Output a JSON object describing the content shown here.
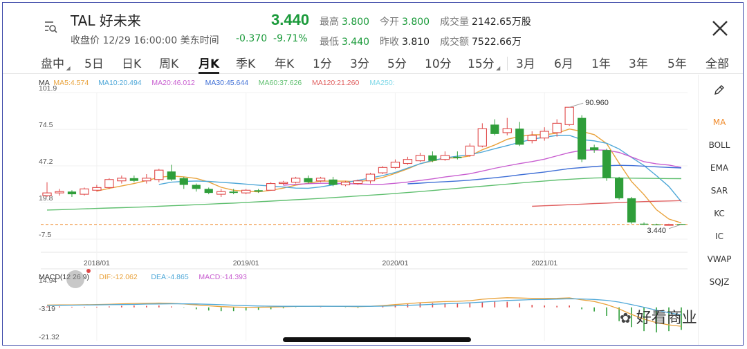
{
  "header": {
    "symbol": "TAL 好未来",
    "subtitle": "收盘价 12/29 16:00:00 美东时间",
    "price": "3.440",
    "change": "-0.370",
    "change_pct": "-9.71%",
    "stats": [
      {
        "label": "最高",
        "value": "3.800",
        "style": "v"
      },
      {
        "label": "今开",
        "value": "3.800",
        "style": "v"
      },
      {
        "label": "成交量",
        "value": "2142.65万股",
        "style": "d"
      },
      {
        "label": "最低",
        "value": "3.440",
        "style": "v"
      },
      {
        "label": "昨收",
        "value": "3.810",
        "style": "d"
      },
      {
        "label": "成交额",
        "value": "7522.66万",
        "style": "d"
      }
    ]
  },
  "tabs": [
    "盘中",
    "5日",
    "日K",
    "周K",
    "月K",
    "季K",
    "年K",
    "1分",
    "3分",
    "5分",
    "10分",
    "15分",
    "3月",
    "6月",
    "1年",
    "3年",
    "5年",
    "全部"
  ],
  "active_tab": "月K",
  "side_menu": [
    "MA",
    "BOLL",
    "EMA",
    "SAR",
    "KC",
    "IC",
    "VWAP",
    "SQJZ"
  ],
  "active_indicator": "MA",
  "watermark": "好看商业",
  "colors": {
    "up": "#e04848",
    "down": "#2f9e3a",
    "accent": "#f08c2e"
  },
  "chart_data": {
    "type": "candlestick",
    "ma_legend": [
      {
        "label": "MA",
        "color": "#333333"
      },
      {
        "label": "MA5:4.574",
        "color": "#e9a23b"
      },
      {
        "label": "MA10:20.494",
        "color": "#4fa8d8"
      },
      {
        "label": "MA20:46.012",
        "color": "#c85ed0"
      },
      {
        "label": "MA30:45.644",
        "color": "#3f6fd6"
      },
      {
        "label": "MA60:37.626",
        "color": "#5fbf6f"
      },
      {
        "label": "MA120:21.260",
        "color": "#e06060"
      },
      {
        "label": "MA250:",
        "color": "#7fd8e8"
      }
    ],
    "y_ticks": [
      "101.9",
      "74.5",
      "47.2",
      "19.8",
      "-7.5"
    ],
    "y_tick_values": [
      101.9,
      74.5,
      47.2,
      19.8,
      -7.5
    ],
    "ylim": [
      -7.5,
      101.9
    ],
    "x_ticks": [
      {
        "label": "2018/01",
        "index": 4
      },
      {
        "label": "2019/01",
        "index": 16
      },
      {
        "label": "2020/01",
        "index": 28
      },
      {
        "label": "2021/01",
        "index": 40
      }
    ],
    "candles": [
      [
        25,
        27,
        35,
        24
      ],
      [
        27,
        28,
        30,
        25
      ],
      [
        28,
        26,
        29,
        24
      ],
      [
        26,
        30,
        31,
        25
      ],
      [
        29,
        31,
        33,
        28
      ],
      [
        31,
        37,
        38,
        30
      ],
      [
        36,
        38,
        40,
        34
      ],
      [
        38,
        36,
        40,
        35
      ],
      [
        36,
        38,
        41,
        34
      ],
      [
        37,
        44,
        45,
        35
      ],
      [
        43,
        37,
        48,
        36
      ],
      [
        38,
        33,
        39,
        30
      ],
      [
        33,
        30,
        34,
        28
      ],
      [
        30,
        27,
        31,
        26
      ],
      [
        26,
        28,
        30,
        24
      ],
      [
        28,
        27,
        30,
        26
      ],
      [
        27,
        29,
        30,
        26
      ],
      [
        29,
        28,
        30,
        27
      ],
      [
        29,
        34,
        35,
        29
      ],
      [
        34,
        35,
        36,
        33
      ],
      [
        35,
        38,
        39,
        34
      ],
      [
        38,
        35,
        40,
        34
      ],
      [
        36,
        38,
        39,
        35
      ],
      [
        37,
        33,
        39,
        32
      ],
      [
        33,
        35,
        36,
        32
      ],
      [
        34,
        36,
        37,
        33
      ],
      [
        36,
        41,
        42,
        34
      ],
      [
        42,
        46,
        47,
        41
      ],
      [
        46,
        50,
        52,
        45
      ],
      [
        49,
        52,
        54,
        48
      ],
      [
        51,
        55,
        57,
        50
      ],
      [
        55,
        51,
        58,
        50
      ],
      [
        52,
        55,
        58,
        51
      ],
      [
        54,
        53,
        58,
        52
      ],
      [
        55,
        62,
        64,
        54
      ],
      [
        62,
        75,
        79,
        61
      ],
      [
        78,
        71,
        82,
        70
      ],
      [
        72,
        75,
        83,
        70
      ],
      [
        75,
        63,
        80,
        62
      ],
      [
        66,
        70,
        73,
        64
      ],
      [
        68,
        73,
        76,
        66
      ],
      [
        72,
        79,
        82,
        69
      ],
      [
        78,
        90.96,
        91,
        77
      ],
      [
        83,
        52,
        85,
        50
      ],
      [
        61,
        59,
        63,
        57
      ],
      [
        59,
        38,
        60,
        36
      ],
      [
        38,
        23,
        39,
        22
      ],
      [
        23,
        5,
        24,
        4
      ],
      [
        4,
        3.3,
        5,
        3
      ],
      [
        3.5,
        3.1,
        4,
        3
      ],
      [
        3.2,
        3.4,
        4,
        3
      ],
      [
        3.8,
        3.44,
        3.9,
        3.4
      ]
    ],
    "ma_lines": [
      {
        "name": "MA5",
        "color": "#e9a23b",
        "values": [
          null,
          null,
          null,
          null,
          28.4,
          30.4,
          32.2,
          34.0,
          36.2,
          38.6,
          39.6,
          39.0,
          37.8,
          35.2,
          31.2,
          29.0,
          28.2,
          27.8,
          29.0,
          30.6,
          32.8,
          34.2,
          35.8,
          35.8,
          35.8,
          35.4,
          36.6,
          38.6,
          41.6,
          45.0,
          48.8,
          50.8,
          53.0,
          53.2,
          54.6,
          59.2,
          62.8,
          67.0,
          69.2,
          70.4,
          70.4,
          71.6,
          74.7,
          72.9,
          70.5,
          63.8,
          49.2,
          35.5,
          25.7,
          14.5,
          7.5,
          4.57
        ]
      },
      {
        "name": "MA10",
        "color": "#4fa8d8",
        "values": [
          null,
          null,
          null,
          null,
          null,
          null,
          null,
          null,
          null,
          33.3,
          35.0,
          35.6,
          35.9,
          35.6,
          34.9,
          34.3,
          33.6,
          32.8,
          32.1,
          31.4,
          30.6,
          30.5,
          31.5,
          33.0,
          34.7,
          36.4,
          38.1,
          40.0,
          42.3,
          45.6,
          48.8,
          51.3,
          53.1,
          54.5,
          55.5,
          57.5,
          60.0,
          62.3,
          64.7,
          67.1,
          68.6,
          69.9,
          70.0,
          66.8,
          65.9,
          64.1,
          59.8,
          53.5,
          47.4,
          39.9,
          31.8,
          20.49
        ]
      },
      {
        "name": "MA20",
        "color": "#c85ed0",
        "values": [
          null,
          null,
          null,
          null,
          null,
          null,
          null,
          null,
          null,
          null,
          null,
          null,
          null,
          null,
          null,
          null,
          null,
          null,
          null,
          32.7,
          33.4,
          33.9,
          34.2,
          34.2,
          34.0,
          33.7,
          33.4,
          33.4,
          34.2,
          35.1,
          36.3,
          37.5,
          38.9,
          40.1,
          41.3,
          43.3,
          45.4,
          47.2,
          48.9,
          50.4,
          52.2,
          54.7,
          57.1,
          58.8,
          59.1,
          58.9,
          57.2,
          53.8,
          50.3,
          48.7,
          47.8,
          46.01
        ]
      },
      {
        "name": "MA30",
        "color": "#3f6fd6",
        "values": [
          null,
          null,
          null,
          null,
          null,
          null,
          null,
          null,
          null,
          null,
          null,
          null,
          null,
          null,
          null,
          null,
          null,
          null,
          null,
          null,
          null,
          null,
          null,
          null,
          null,
          null,
          null,
          null,
          null,
          33.8,
          34.3,
          34.9,
          35.4,
          35.9,
          36.5,
          37.4,
          38.3,
          39.3,
          40.5,
          41.5,
          42.6,
          43.9,
          45.2,
          45.9,
          46.7,
          47.3,
          47.6,
          47.4,
          47.0,
          46.5,
          46.0,
          45.64
        ]
      },
      {
        "name": "MA60",
        "color": "#5fbf6f",
        "values": [
          14.2,
          14.5,
          14.8,
          15.1,
          15.4,
          15.7,
          16.0,
          16.3,
          16.6,
          17.0,
          17.4,
          17.8,
          18.2,
          18.6,
          19.0,
          19.4,
          19.9,
          20.4,
          20.9,
          21.4,
          21.9,
          22.4,
          22.9,
          23.5,
          24.1,
          24.7,
          25.3,
          25.9,
          26.6,
          27.3,
          28.0,
          28.8,
          29.6,
          30.4,
          31.2,
          32.0,
          32.8,
          33.6,
          34.4,
          35.2,
          35.9,
          36.6,
          37.2,
          37.7,
          38.1,
          38.3,
          38.2,
          38.0,
          37.9,
          37.8,
          37.7,
          37.63
        ]
      },
      {
        "name": "MA120",
        "color": "#e06060",
        "values": [
          null,
          null,
          null,
          null,
          null,
          null,
          null,
          null,
          null,
          null,
          null,
          null,
          null,
          null,
          null,
          null,
          null,
          null,
          null,
          null,
          null,
          null,
          null,
          null,
          null,
          null,
          null,
          null,
          null,
          null,
          null,
          null,
          null,
          null,
          null,
          null,
          null,
          null,
          null,
          17.0,
          17.4,
          17.8,
          18.2,
          18.6,
          19.0,
          19.4,
          19.8,
          20.2,
          20.5,
          20.8,
          21.0,
          21.26
        ]
      }
    ],
    "annotations": [
      {
        "label": "90.960",
        "index": 42,
        "value": 90.96
      },
      {
        "label": "3.440",
        "index": 51,
        "value": 3.44
      }
    ],
    "last_price_line": 3.44,
    "macd": {
      "legend": [
        {
          "label": "MACD(12 26 9)",
          "color": "#333333"
        },
        {
          "label": "DIF:-12.062",
          "color": "#e9a23b"
        },
        {
          "label": "DEA:-4.865",
          "color": "#4fa8d8"
        },
        {
          "label": "MACD:-14.393",
          "color": "#c85ed0"
        }
      ],
      "y_ticks": [
        "14.94",
        "-3.19",
        "-21.32"
      ],
      "y_tick_values": [
        14.94,
        -3.19,
        -21.32
      ],
      "ylim": [
        -21.32,
        14.94
      ],
      "dif": [
        1.5,
        1.6,
        1.6,
        1.7,
        1.8,
        2.0,
        2.3,
        2.5,
        2.6,
        2.8,
        2.6,
        2.2,
        1.6,
        1.0,
        0.5,
        0.2,
        0.1,
        0.1,
        0.2,
        0.4,
        0.6,
        0.7,
        0.8,
        0.7,
        0.6,
        0.5,
        0.7,
        1.2,
        1.8,
        2.4,
        3.0,
        3.4,
        3.7,
        3.9,
        4.3,
        5.2,
        5.8,
        6.2,
        6.0,
        5.8,
        5.7,
        5.8,
        6.1,
        4.8,
        3.8,
        1.8,
        -1.0,
        -4.5,
        -7.5,
        -9.8,
        -11.2,
        -12.06
      ],
      "dea": [
        1.2,
        1.3,
        1.4,
        1.5,
        1.6,
        1.7,
        1.8,
        1.9,
        2.1,
        2.2,
        2.3,
        2.3,
        2.2,
        2.0,
        1.7,
        1.4,
        1.1,
        0.9,
        0.8,
        0.7,
        0.7,
        0.7,
        0.7,
        0.7,
        0.7,
        0.7,
        0.7,
        0.8,
        1.0,
        1.3,
        1.6,
        2.0,
        2.3,
        2.6,
        2.9,
        3.4,
        3.9,
        4.4,
        4.7,
        5.0,
        5.1,
        5.3,
        5.5,
        5.4,
        5.1,
        4.5,
        3.4,
        1.8,
        0.1,
        -1.8,
        -3.4,
        -4.865
      ],
      "hist": [
        0.6,
        0.6,
        0.4,
        0.4,
        0.4,
        0.6,
        1.0,
        1.2,
        1.0,
        1.2,
        0.6,
        -0.2,
        -1.2,
        -2.0,
        -2.4,
        -2.4,
        -2.0,
        -1.6,
        -1.2,
        -0.6,
        -0.2,
        0,
        0.2,
        0,
        -0.2,
        -0.4,
        0,
        0.8,
        1.6,
        2.2,
        2.8,
        2.8,
        2.8,
        2.6,
        2.8,
        3.6,
        3.8,
        3.6,
        2.6,
        1.6,
        1.2,
        1.0,
        1.2,
        -1.2,
        -2.6,
        -5.4,
        -8.8,
        -12.6,
        -15.2,
        -16.0,
        -15.2,
        -14.39
      ]
    }
  }
}
